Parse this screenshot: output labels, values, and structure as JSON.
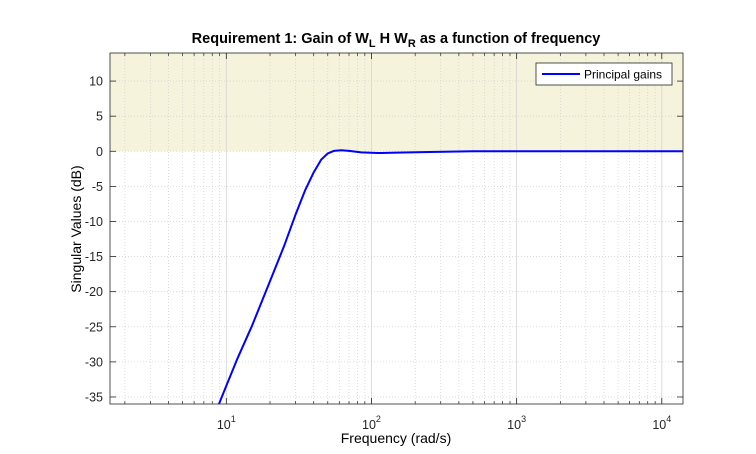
{
  "chart_data": {
    "type": "line",
    "title": {
      "prefix": "Requirement 1: Gain of W",
      "sub1": "L",
      "middle": " H W",
      "sub2": "R",
      "suffix": " as a function of frequency"
    },
    "xlabel": "Frequency (rad/s)",
    "ylabel": "Singular Values (dB)",
    "x_scale": "log",
    "xlim": [
      1.58,
      14000
    ],
    "ylim": [
      -36,
      14
    ],
    "grid": true,
    "minor_grid": true,
    "x_ticks": [
      {
        "value": 10,
        "base": "10",
        "exp": "1"
      },
      {
        "value": 100,
        "base": "10",
        "exp": "2"
      },
      {
        "value": 1000,
        "base": "10",
        "exp": "3"
      },
      {
        "value": 10000,
        "base": "10",
        "exp": "4"
      }
    ],
    "y_ticks": [
      10,
      5,
      0,
      -5,
      -10,
      -15,
      -20,
      -25,
      -30,
      -35
    ],
    "shaded_region": {
      "y_from": 0,
      "y_to": 14,
      "color": "#f5f3dc",
      "meaning": "requirement violation zone"
    },
    "legend": {
      "position": "top-right",
      "entries": [
        "Principal gains"
      ]
    },
    "series": [
      {
        "name": "Principal gains",
        "color": "#0000ff",
        "points": [
          [
            8.9,
            -36
          ],
          [
            10,
            -33.4
          ],
          [
            12,
            -29.4
          ],
          [
            15,
            -24.9
          ],
          [
            20,
            -18.5
          ],
          [
            25,
            -13.5
          ],
          [
            30,
            -9
          ],
          [
            35,
            -5.5
          ],
          [
            40,
            -3
          ],
          [
            45,
            -1.2
          ],
          [
            50,
            -0.3
          ],
          [
            55,
            0.05
          ],
          [
            62,
            0.15
          ],
          [
            70,
            0.05
          ],
          [
            85,
            -0.15
          ],
          [
            110,
            -0.25
          ],
          [
            150,
            -0.2
          ],
          [
            250,
            -0.1
          ],
          [
            500,
            0.0
          ],
          [
            1000,
            0.0
          ],
          [
            14000,
            0.0
          ]
        ]
      }
    ]
  }
}
